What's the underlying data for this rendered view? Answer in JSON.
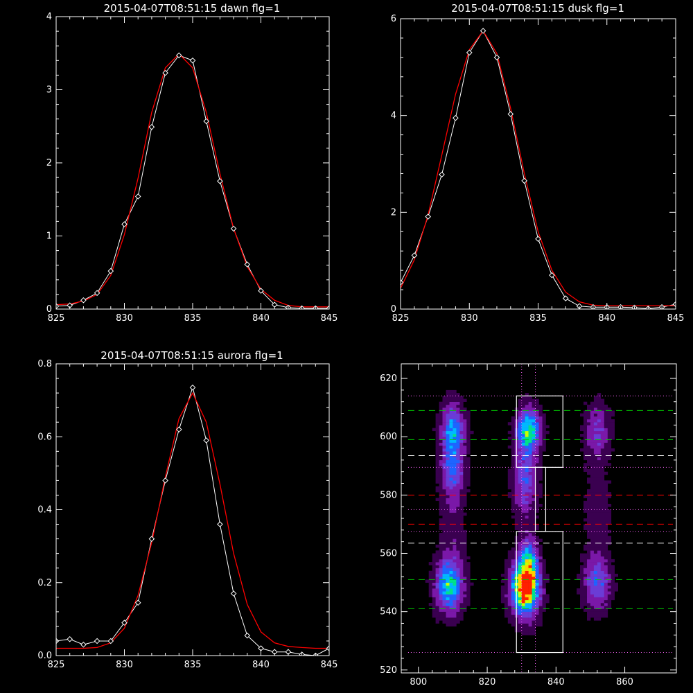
{
  "colors": {
    "background": "#000000",
    "axes": "#ffffff",
    "observed": "#ffffff",
    "fit": "#ff0000",
    "guide_green": "#00cc00",
    "guide_white": "#ffffff",
    "guide_red": "#ff0000",
    "guide_magenta": "#ff66ff"
  },
  "chart_data": [
    {
      "id": "dawn",
      "type": "line",
      "title": "2015-04-07T08:51:15 dawn flg=1",
      "xlim": [
        825,
        845
      ],
      "ylim": [
        0,
        4
      ],
      "xticks": [
        825,
        830,
        835,
        840,
        845
      ],
      "yticks": [
        0,
        1,
        2,
        3,
        4
      ],
      "series": [
        {
          "role": "observed",
          "marker": "diamond",
          "x": [
            825,
            826,
            827,
            828,
            829,
            830,
            831,
            832,
            833,
            834,
            835,
            836,
            837,
            838,
            839,
            840,
            841,
            842,
            843,
            844,
            845
          ],
          "y": [
            0.04,
            0.05,
            0.12,
            0.22,
            0.52,
            1.16,
            1.54,
            2.49,
            3.23,
            3.47,
            3.4,
            2.57,
            1.75,
            1.1,
            0.61,
            0.25,
            0.06,
            0.02,
            0.01,
            0.01,
            0.01
          ]
        },
        {
          "role": "fit",
          "x": [
            825,
            826,
            827,
            828,
            829,
            830,
            831,
            832,
            833,
            834,
            835,
            836,
            837,
            838,
            839,
            840,
            841,
            842,
            843,
            844,
            845
          ],
          "y": [
            0.06,
            0.07,
            0.11,
            0.2,
            0.46,
            1.02,
            1.79,
            2.69,
            3.3,
            3.49,
            3.3,
            2.69,
            1.85,
            1.1,
            0.58,
            0.27,
            0.12,
            0.05,
            0.03,
            0.03,
            0.03
          ]
        }
      ]
    },
    {
      "id": "dusk",
      "type": "line",
      "title": "2015-04-07T08:51:15 dusk flg=1",
      "xlim": [
        825,
        845
      ],
      "ylim": [
        0,
        6
      ],
      "xticks": [
        825,
        830,
        835,
        840,
        845
      ],
      "yticks": [
        0,
        2,
        4,
        6
      ],
      "series": [
        {
          "role": "observed",
          "marker": "diamond",
          "x": [
            825,
            826,
            827,
            828,
            829,
            830,
            831,
            832,
            833,
            834,
            835,
            836,
            837,
            838,
            839,
            840,
            841,
            842,
            843,
            844,
            845
          ],
          "y": [
            0.55,
            1.11,
            1.91,
            2.78,
            3.95,
            5.3,
            5.75,
            5.2,
            4.03,
            2.65,
            1.45,
            0.7,
            0.22,
            0.06,
            0.04,
            0.04,
            0.04,
            0.03,
            0.01,
            0.04,
            0.1
          ]
        },
        {
          "role": "fit",
          "x": [
            825,
            826,
            827,
            828,
            829,
            830,
            831,
            832,
            833,
            834,
            835,
            836,
            837,
            838,
            839,
            840,
            841,
            842,
            843,
            844,
            845
          ],
          "y": [
            0.43,
            1.02,
            1.94,
            3.18,
            4.44,
            5.36,
            5.75,
            5.28,
            4.15,
            2.8,
            1.6,
            0.8,
            0.35,
            0.15,
            0.08,
            0.07,
            0.07,
            0.07,
            0.07,
            0.07,
            0.07
          ]
        }
      ]
    },
    {
      "id": "aurora",
      "type": "line",
      "title": "2015-04-07T08:51:15 aurora flg=1",
      "xlim": [
        825,
        845
      ],
      "ylim": [
        0,
        0.8
      ],
      "xticks": [
        825,
        830,
        835,
        840,
        845
      ],
      "yticks": [
        0.0,
        0.2,
        0.4,
        0.6,
        0.8
      ],
      "series": [
        {
          "role": "observed",
          "marker": "diamond",
          "x": [
            825,
            826,
            827,
            828,
            829,
            830,
            831,
            832,
            833,
            834,
            835,
            836,
            837,
            838,
            839,
            840,
            841,
            842,
            843,
            844,
            845
          ],
          "y": [
            0.04,
            0.045,
            0.03,
            0.04,
            0.04,
            0.09,
            0.145,
            0.32,
            0.48,
            0.62,
            0.735,
            0.59,
            0.36,
            0.17,
            0.055,
            0.02,
            0.01,
            0.01,
            0.003,
            0.0,
            0.02
          ]
        },
        {
          "role": "fit",
          "x": [
            825,
            826,
            827,
            828,
            829,
            830,
            831,
            832,
            833,
            834,
            835,
            836,
            837,
            838,
            839,
            840,
            841,
            842,
            843,
            844,
            845
          ],
          "y": [
            0.02,
            0.02,
            0.02,
            0.022,
            0.035,
            0.075,
            0.165,
            0.31,
            0.49,
            0.65,
            0.72,
            0.64,
            0.47,
            0.28,
            0.14,
            0.065,
            0.035,
            0.025,
            0.022,
            0.02,
            0.02
          ]
        }
      ]
    },
    {
      "id": "image",
      "type": "heatmap",
      "title": "",
      "xlim": [
        795,
        875
      ],
      "ylim": [
        519,
        625
      ],
      "xticks": [
        800,
        820,
        840,
        860
      ],
      "yticks": [
        520,
        540,
        560,
        580,
        600,
        620
      ],
      "colormap": [
        "#000000",
        "#3a0050",
        "#7a18a8",
        "#6b3cd6",
        "#1e64ff",
        "#00b8ff",
        "#00e28a",
        "#c8ff00",
        "#ffd000",
        "#ff2000"
      ],
      "blobs": [
        {
          "x": 810,
          "y": 602,
          "sx": 2.2,
          "sy": 6,
          "amp": 0.5
        },
        {
          "x": 810,
          "y": 588,
          "sx": 2.2,
          "sy": 6,
          "amp": 0.3
        },
        {
          "x": 809,
          "y": 549,
          "sx": 2.6,
          "sy": 6,
          "amp": 0.58
        },
        {
          "x": 832,
          "y": 602,
          "sx": 2.2,
          "sy": 5,
          "amp": 0.64
        },
        {
          "x": 831,
          "y": 585,
          "sx": 2.2,
          "sy": 8,
          "amp": 0.33
        },
        {
          "x": 831,
          "y": 548,
          "sx": 2.6,
          "sy": 6,
          "amp": 1.0
        },
        {
          "x": 832,
          "y": 556,
          "sx": 1.8,
          "sy": 6,
          "amp": 0.5
        },
        {
          "x": 852,
          "y": 602,
          "sx": 2.4,
          "sy": 6,
          "amp": 0.24
        },
        {
          "x": 852,
          "y": 550,
          "sx": 2.5,
          "sy": 6,
          "amp": 0.36
        },
        {
          "x": 852,
          "y": 575,
          "sx": 2.5,
          "sy": 12,
          "amp": 0.1
        },
        {
          "x": 810,
          "y": 570,
          "sx": 2.5,
          "sy": 12,
          "amp": 0.1
        }
      ],
      "hlines": [
        {
          "y": 609,
          "style": "dashed",
          "color": "green"
        },
        {
          "y": 599,
          "style": "dashed",
          "color": "green"
        },
        {
          "y": 551,
          "style": "dashed",
          "color": "green"
        },
        {
          "y": 541,
          "style": "dashed",
          "color": "green"
        },
        {
          "y": 593.5,
          "style": "dashed",
          "color": "white"
        },
        {
          "y": 563.5,
          "style": "dashed",
          "color": "white"
        },
        {
          "y": 580,
          "style": "dashed",
          "color": "red"
        },
        {
          "y": 570,
          "style": "dashed",
          "color": "red"
        },
        {
          "y": 614,
          "style": "dotted",
          "color": "magenta"
        },
        {
          "y": 589.5,
          "style": "dotted",
          "color": "magenta"
        },
        {
          "y": 575,
          "style": "dotted",
          "color": "magenta"
        },
        {
          "y": 567.5,
          "style": "dotted",
          "color": "magenta"
        },
        {
          "y": 526,
          "style": "dotted",
          "color": "magenta"
        }
      ],
      "vlines": [
        {
          "x": 830,
          "style": "dotted",
          "color": "magenta"
        },
        {
          "x": 834,
          "style": "dotted",
          "color": "magenta"
        }
      ],
      "boxes": [
        {
          "x0": 828.5,
          "x1": 842,
          "y0": 589.5,
          "y1": 614
        },
        {
          "x0": 828.5,
          "x1": 842,
          "y0": 526,
          "y1": 567.5
        },
        {
          "x0": 834,
          "x1": 837,
          "y0": 567.5,
          "y1": 589.5
        }
      ]
    }
  ]
}
